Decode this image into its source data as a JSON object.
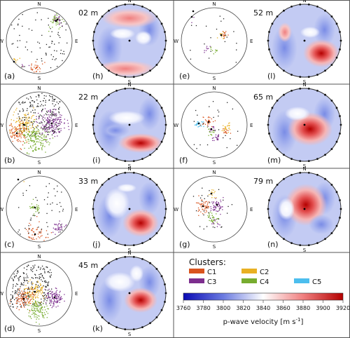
{
  "panels": {
    "a": {
      "label": "(a)",
      "depth": "02 m"
    },
    "b": {
      "label": "(b)",
      "depth": "22 m"
    },
    "c": {
      "label": "(c)",
      "depth": "33 m"
    },
    "d": {
      "label": "(d)",
      "depth": "45 m"
    },
    "e": {
      "label": "(e)",
      "depth": "52 m"
    },
    "f": {
      "label": "(f)",
      "depth": "65 m"
    },
    "g": {
      "label": "(g)",
      "depth": "79 m"
    },
    "h": {
      "label": "(h)"
    },
    "i": {
      "label": "(i)"
    },
    "j": {
      "label": "(j)"
    },
    "k": {
      "label": "(k)"
    },
    "l": {
      "label": "(l)"
    },
    "m": {
      "label": "(m)"
    },
    "n": {
      "label": "(n)"
    }
  },
  "compass": {
    "n": "N",
    "s": "S",
    "e": "E",
    "w": "W"
  },
  "legend": {
    "title": "Clusters:",
    "items": [
      {
        "name": "C1",
        "color": "#d9541e"
      },
      {
        "name": "C2",
        "color": "#e8b023"
      },
      {
        "name": "C3",
        "color": "#7d2e8e"
      },
      {
        "name": "C4",
        "color": "#77ac2f"
      },
      {
        "name": "C5",
        "color": "#4cbeee"
      }
    ]
  },
  "colorbar": {
    "ticks": [
      "3760",
      "3780",
      "3800",
      "3820",
      "3840",
      "3860",
      "3880",
      "3900",
      "3920"
    ],
    "label": "p-wave velocity [m s",
    "label_sup": "-1",
    "label_end": "]",
    "colors": [
      "#0a0ab4",
      "#6b7be0",
      "#ffffff",
      "#f08080",
      "#b40000"
    ]
  }
}
